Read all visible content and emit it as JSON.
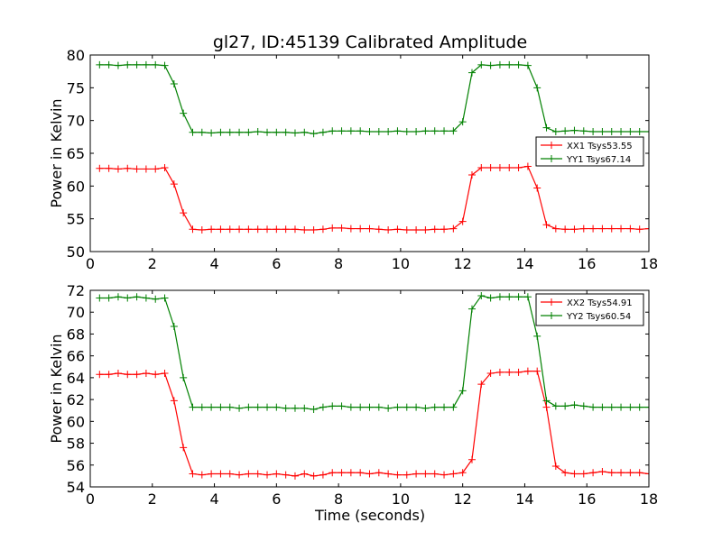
{
  "figure": {
    "title": "gl27, ID:45139 Calibrated Amplitude",
    "xlabel": "Time (seconds)"
  },
  "chart_data": [
    {
      "type": "line",
      "ylabel": "Power in Kelvin",
      "xlim": [
        0,
        18
      ],
      "ylim": [
        50,
        80
      ],
      "xticks": [
        "0",
        "2",
        "4",
        "6",
        "8",
        "10",
        "12",
        "14",
        "16",
        "18"
      ],
      "yticks": [
        "50",
        "55",
        "60",
        "65",
        "70",
        "75",
        "80"
      ],
      "xtick_values": [
        0,
        2,
        4,
        6,
        8,
        10,
        12,
        14,
        16,
        18
      ],
      "ytick_values": [
        50,
        55,
        60,
        65,
        70,
        75,
        80
      ],
      "legend_position": "right",
      "x": [
        0.3,
        0.6,
        0.9,
        1.2,
        1.5,
        1.8,
        2.1,
        2.4,
        2.7,
        3.0,
        3.3,
        3.6,
        3.9,
        4.2,
        4.5,
        4.8,
        5.1,
        5.4,
        5.7,
        6.0,
        6.3,
        6.6,
        6.9,
        7.2,
        7.5,
        7.8,
        8.1,
        8.4,
        8.7,
        9.0,
        9.3,
        9.6,
        9.9,
        10.2,
        10.5,
        10.8,
        11.1,
        11.4,
        11.7,
        12.0,
        12.3,
        12.6,
        12.9,
        13.2,
        13.5,
        13.8,
        14.1,
        14.4,
        14.7,
        15.0,
        15.3,
        15.6,
        15.9,
        16.2,
        16.5,
        16.8,
        17.1,
        17.4,
        17.7,
        18.0
      ],
      "series": [
        {
          "name": "XX1 Tsys53.55",
          "color": "#ff0000",
          "values": [
            62.7,
            62.7,
            62.6,
            62.7,
            62.6,
            62.6,
            62.6,
            62.8,
            60.3,
            55.9,
            53.4,
            53.3,
            53.4,
            53.4,
            53.4,
            53.4,
            53.4,
            53.4,
            53.4,
            53.4,
            53.4,
            53.4,
            53.3,
            53.3,
            53.4,
            53.6,
            53.6,
            53.5,
            53.5,
            53.5,
            53.4,
            53.3,
            53.4,
            53.3,
            53.3,
            53.3,
            53.4,
            53.4,
            53.5,
            54.6,
            61.7,
            62.8,
            62.8,
            62.8,
            62.8,
            62.8,
            63.0,
            59.7,
            54.1,
            53.5,
            53.4,
            53.4,
            53.5,
            53.5,
            53.5,
            53.5,
            53.5,
            53.5,
            53.4,
            53.5
          ]
        },
        {
          "name": "YY1 Tsys67.14",
          "color": "#008000",
          "values": [
            78.5,
            78.5,
            78.4,
            78.5,
            78.5,
            78.5,
            78.5,
            78.4,
            75.6,
            71.1,
            68.2,
            68.2,
            68.1,
            68.2,
            68.2,
            68.2,
            68.2,
            68.3,
            68.2,
            68.2,
            68.2,
            68.1,
            68.2,
            68.0,
            68.2,
            68.4,
            68.4,
            68.4,
            68.4,
            68.3,
            68.3,
            68.3,
            68.4,
            68.3,
            68.3,
            68.4,
            68.4,
            68.4,
            68.4,
            69.8,
            77.3,
            78.5,
            78.4,
            78.5,
            78.5,
            78.5,
            78.4,
            75.0,
            68.9,
            68.3,
            68.4,
            68.5,
            68.4,
            68.3,
            68.3,
            68.3,
            68.3,
            68.3,
            68.3,
            68.3
          ]
        }
      ]
    },
    {
      "type": "line",
      "ylabel": "Power in Kelvin",
      "xlabel": "Time (seconds)",
      "xlim": [
        0,
        18
      ],
      "ylim": [
        54,
        72
      ],
      "xticks": [
        "0",
        "2",
        "4",
        "6",
        "8",
        "10",
        "12",
        "14",
        "16",
        "18"
      ],
      "yticks": [
        "54",
        "56",
        "58",
        "60",
        "62",
        "64",
        "66",
        "68",
        "70",
        "72"
      ],
      "xtick_values": [
        0,
        2,
        4,
        6,
        8,
        10,
        12,
        14,
        16,
        18
      ],
      "ytick_values": [
        54,
        56,
        58,
        60,
        62,
        64,
        66,
        68,
        70,
        72
      ],
      "legend_position": "top-right",
      "x": [
        0.3,
        0.6,
        0.9,
        1.2,
        1.5,
        1.8,
        2.1,
        2.4,
        2.7,
        3.0,
        3.3,
        3.6,
        3.9,
        4.2,
        4.5,
        4.8,
        5.1,
        5.4,
        5.7,
        6.0,
        6.3,
        6.6,
        6.9,
        7.2,
        7.5,
        7.8,
        8.1,
        8.4,
        8.7,
        9.0,
        9.3,
        9.6,
        9.9,
        10.2,
        10.5,
        10.8,
        11.1,
        11.4,
        11.7,
        12.0,
        12.3,
        12.6,
        12.9,
        13.2,
        13.5,
        13.8,
        14.1,
        14.4,
        14.7,
        15.0,
        15.3,
        15.6,
        15.9,
        16.2,
        16.5,
        16.8,
        17.1,
        17.4,
        17.7,
        18.0
      ],
      "series": [
        {
          "name": "XX2 Tsys54.91",
          "color": "#ff0000",
          "values": [
            64.3,
            64.3,
            64.4,
            64.3,
            64.3,
            64.4,
            64.3,
            64.4,
            61.9,
            57.6,
            55.2,
            55.1,
            55.2,
            55.2,
            55.2,
            55.1,
            55.2,
            55.2,
            55.1,
            55.2,
            55.1,
            55.0,
            55.2,
            55.0,
            55.1,
            55.3,
            55.3,
            55.3,
            55.3,
            55.2,
            55.3,
            55.2,
            55.1,
            55.1,
            55.2,
            55.2,
            55.2,
            55.1,
            55.2,
            55.3,
            56.5,
            63.4,
            64.4,
            64.5,
            64.5,
            64.5,
            64.6,
            64.6,
            61.3,
            55.9,
            55.3,
            55.2,
            55.2,
            55.3,
            55.4,
            55.3,
            55.3,
            55.3,
            55.3,
            55.2
          ]
        },
        {
          "name": "YY2 Tsys60.54",
          "color": "#008000",
          "values": [
            71.3,
            71.3,
            71.4,
            71.3,
            71.4,
            71.3,
            71.2,
            71.3,
            68.7,
            64.0,
            61.3,
            61.3,
            61.3,
            61.3,
            61.3,
            61.2,
            61.3,
            61.3,
            61.3,
            61.3,
            61.2,
            61.2,
            61.2,
            61.1,
            61.3,
            61.4,
            61.4,
            61.3,
            61.3,
            61.3,
            61.3,
            61.2,
            61.3,
            61.3,
            61.3,
            61.2,
            61.3,
            61.3,
            61.3,
            62.8,
            70.3,
            71.5,
            71.3,
            71.4,
            71.4,
            71.4,
            71.4,
            67.8,
            61.9,
            61.4,
            61.4,
            61.5,
            61.4,
            61.3,
            61.3,
            61.3,
            61.3,
            61.3,
            61.3,
            61.3
          ]
        }
      ]
    }
  ]
}
